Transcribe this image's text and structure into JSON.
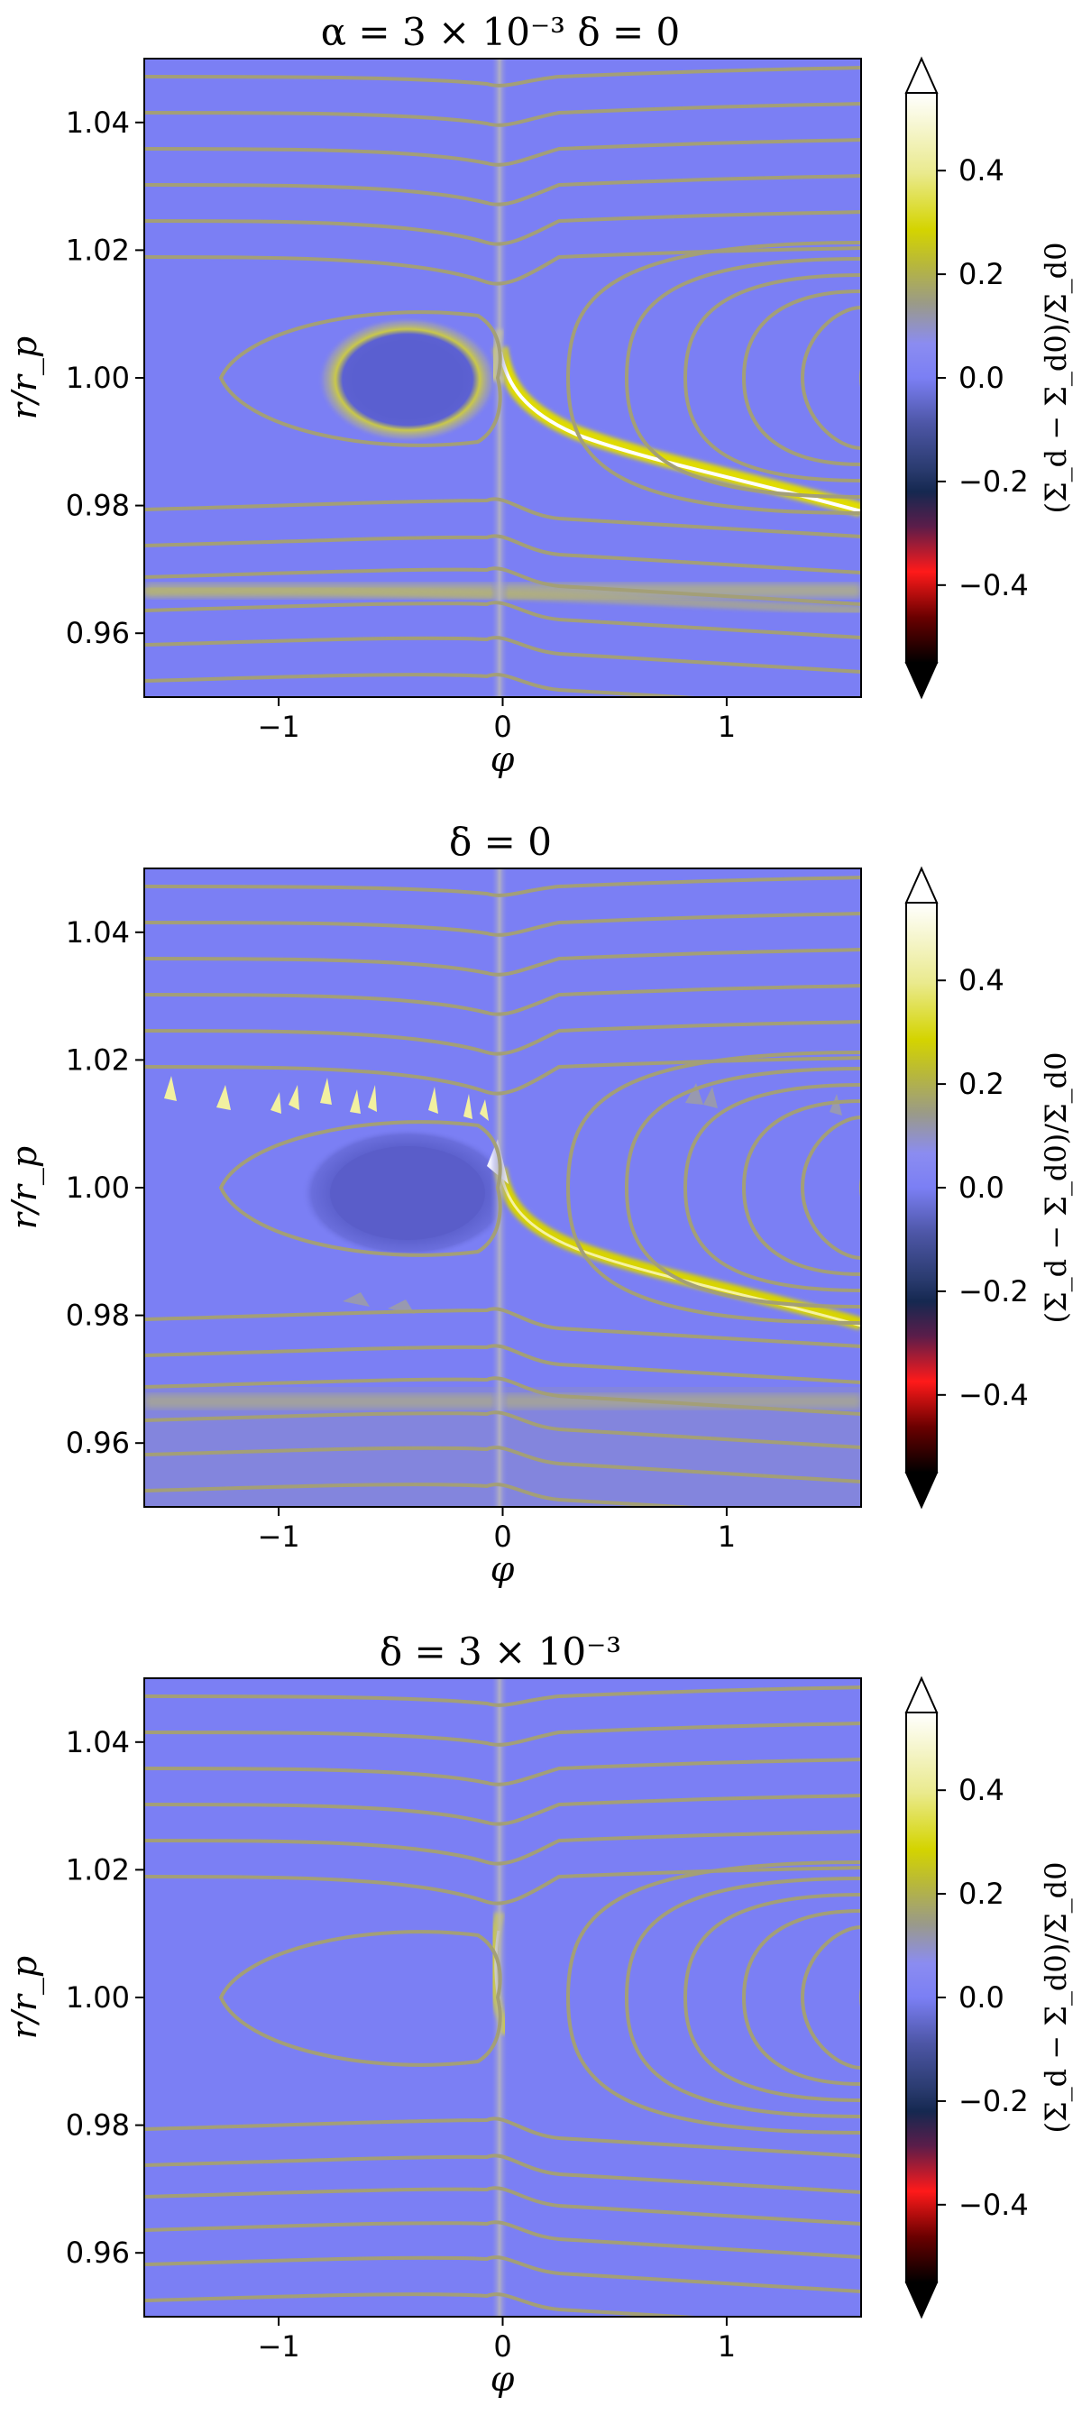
{
  "colorbar": {
    "label": "(Σ_d − Σ_d0)/Σ_d0",
    "ticks": [
      0.4,
      0.2,
      0.0,
      -0.2,
      -0.4
    ],
    "tick_labels": [
      "0.4",
      "0.2",
      "0.0",
      "−0.2",
      "−0.4"
    ],
    "range": [
      -0.55,
      0.55
    ],
    "extend": "both"
  },
  "chart_data": [
    {
      "type": "heatmap",
      "title": "α = 3 × 10⁻³ δ = 0",
      "xlabel": "φ",
      "ylabel": "r/r_p",
      "xlim": [
        -1.6,
        1.6
      ],
      "ylim": [
        0.95,
        1.05
      ],
      "x_ticks": [
        -1,
        0,
        1
      ],
      "x_tick_labels": [
        "−1",
        "0",
        "1"
      ],
      "y_ticks": [
        1.04,
        1.02,
        1.0,
        0.98,
        0.96
      ],
      "y_tick_labels": [
        "1.04",
        "1.02",
        "1.00",
        "0.98",
        "0.96"
      ],
      "background_value": 0.0,
      "features": [
        {
          "kind": "depleted-oval",
          "center": [
            -0.35,
            0.9995
          ],
          "value": -0.12
        },
        {
          "kind": "enhanced-ring",
          "value": 0.2
        },
        {
          "kind": "outer-spiral-arm",
          "from": [
            0.0,
            1.0
          ],
          "to": [
            1.6,
            0.977
          ],
          "value": 0.5
        },
        {
          "kind": "band",
          "r": 0.9645,
          "value": 0.15
        }
      ]
    },
    {
      "type": "heatmap",
      "title": "δ = 0",
      "xlabel": "φ",
      "ylabel": "r/r_p",
      "xlim": [
        -1.6,
        1.6
      ],
      "ylim": [
        0.95,
        1.05
      ],
      "x_ticks": [
        -1,
        0,
        1
      ],
      "x_tick_labels": [
        "−1",
        "0",
        "1"
      ],
      "y_ticks": [
        1.04,
        1.02,
        1.0,
        0.98,
        0.96
      ],
      "y_tick_labels": [
        "1.04",
        "1.02",
        "1.00",
        "0.98",
        "0.96"
      ],
      "background_value": 0.0,
      "features": [
        {
          "kind": "depleted-oval",
          "center": [
            -0.35,
            1.0
          ],
          "value": -0.15
        },
        {
          "kind": "vortex-spikes",
          "r": 1.012,
          "value": 0.5
        },
        {
          "kind": "outer-spiral-arm",
          "from": [
            0.0,
            1.0
          ],
          "to": [
            1.6,
            0.977
          ],
          "value": 0.35
        },
        {
          "kind": "band",
          "r": 0.9645,
          "value": 0.12
        }
      ]
    },
    {
      "type": "heatmap",
      "title": "δ = 3 × 10⁻³",
      "xlabel": "φ",
      "ylabel": "r/r_p",
      "xlim": [
        -1.6,
        1.6
      ],
      "ylim": [
        0.95,
        1.05
      ],
      "x_ticks": [
        -1,
        0,
        1
      ],
      "x_tick_labels": [
        "−1",
        "0",
        "1"
      ],
      "y_ticks": [
        1.04,
        1.02,
        1.0,
        0.98,
        0.96
      ],
      "y_tick_labels": [
        "1.04",
        "1.02",
        "1.00",
        "0.98",
        "0.96"
      ],
      "background_value": 0.0,
      "features": [
        {
          "kind": "planet-streak",
          "center": [
            0.0,
            1.0
          ],
          "value": 0.3
        }
      ]
    }
  ]
}
